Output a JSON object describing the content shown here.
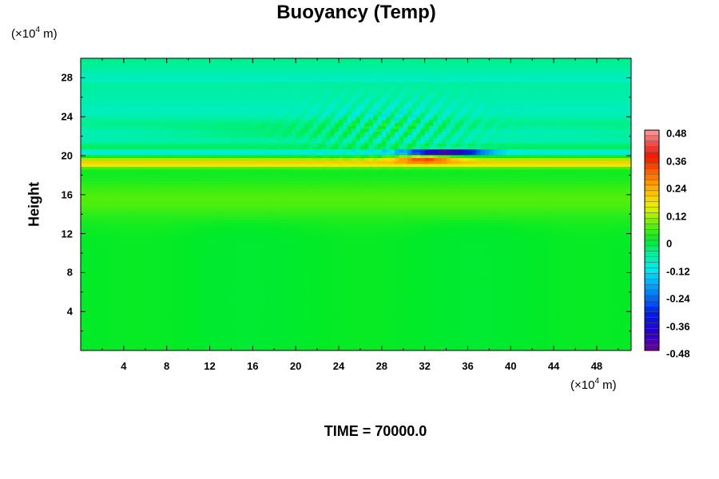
{
  "chart_data": {
    "type": "heatmap",
    "title": "Buoyancy (Temp)",
    "ylabel": "Height",
    "y_unit_label": {
      "pre": "(×10",
      "exp": "4",
      "post": " m)"
    },
    "x_unit_label": {
      "pre": "(×10",
      "exp": "4",
      "post": " m)"
    },
    "footer": "TIME = 70000.0",
    "xlim": [
      0,
      51.2
    ],
    "ylim": [
      0,
      30
    ],
    "xticks": [
      "4",
      "8",
      "12",
      "16",
      "20",
      "24",
      "28",
      "32",
      "36",
      "40",
      "44",
      "48"
    ],
    "yticks": [
      "4",
      "8",
      "12",
      "16",
      "20",
      "24",
      "28"
    ],
    "colorbar": {
      "range": [
        -0.48,
        0.48
      ],
      "labels": [
        "0.48",
        "0.36",
        "0.24",
        "0.12",
        "0",
        "-0.12",
        "-0.24",
        "-0.36",
        "-0.48"
      ],
      "colormap": "rainbow (purple→blue→cyan→green→yellow→red→pink)"
    },
    "field_description": {
      "background_value": 0,
      "warm_layer": {
        "height": 19.5,
        "value": 0.18
      },
      "max_anomaly": {
        "x": 32,
        "height": 19.7,
        "value": 0.36
      },
      "min_anomaly": {
        "x": 34,
        "height": 20.4,
        "value": -0.4
      },
      "wave_region": {
        "x": [
          18,
          40
        ],
        "height": [
          20,
          27
        ]
      }
    }
  }
}
